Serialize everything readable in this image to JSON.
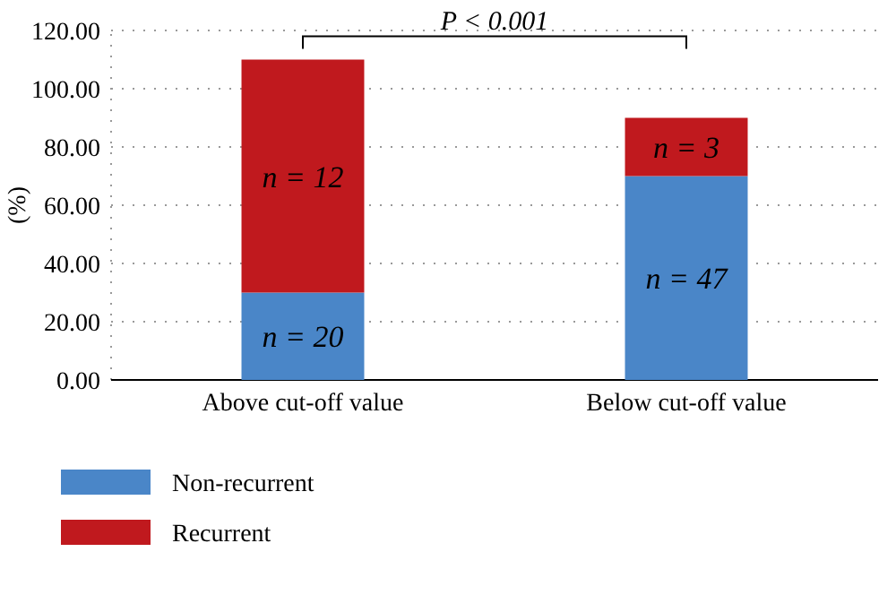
{
  "chart_data": {
    "type": "bar",
    "stacked": true,
    "ylabel": "(%)",
    "categories": [
      "Above cut-off value",
      "Below cut-off value"
    ],
    "series": [
      {
        "name": "Non-recurrent",
        "color": "#4a86c8",
        "values": [
          30,
          70
        ]
      },
      {
        "name": "Recurrent",
        "color": "#c0191e",
        "values": [
          80,
          20
        ]
      }
    ],
    "ylim": [
      0,
      120
    ],
    "yticks": [
      {
        "value": 0,
        "label": "0.00"
      },
      {
        "value": 20,
        "label": "20.00"
      },
      {
        "value": 40,
        "label": "40.00"
      },
      {
        "value": 60,
        "label": "60.00"
      },
      {
        "value": 80,
        "label": "80.00"
      },
      {
        "value": 100,
        "label": "100.00"
      },
      {
        "value": 120,
        "label": "120.00"
      }
    ],
    "grid": "y",
    "legend": "bottom left",
    "annotations": [
      "P < 0.001",
      "n = 20",
      "n = 47",
      "n = 12",
      "n = 3"
    ]
  }
}
